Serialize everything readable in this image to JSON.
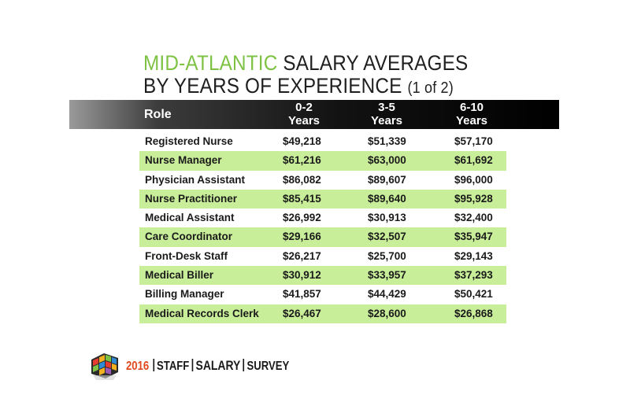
{
  "title": {
    "accent": "MID-ATLANTIC",
    "line1_rest": " SALARY AVERAGES",
    "line2": "BY YEARS OF EXPERIENCE",
    "line2_suffix": "(1 of 2)"
  },
  "footer": {
    "year": "2016",
    "word1": "STAFF",
    "word2": "SALARY",
    "word3": "SURVEY"
  },
  "colors": {
    "accent": "#7dc242",
    "row_shade": "#c9ee9a",
    "header_band": "#000000",
    "year": "#e0491e"
  },
  "chart_data": {
    "type": "table",
    "title": "MID-ATLANTIC SALARY AVERAGES BY YEARS OF EXPERIENCE (1 of 2)",
    "columns": [
      "Role",
      "0-2 Years",
      "3-5 Years",
      "6-10 Years"
    ],
    "header": {
      "role": "Role",
      "c1_line1": "0-2",
      "c1_line2": "Years",
      "c2_line1": "3-5",
      "c2_line2": "Years",
      "c3_line1": "6-10",
      "c3_line2": "Years"
    },
    "rows": [
      [
        "Registered Nurse",
        "$49,218",
        "$51,339",
        "$57,170"
      ],
      [
        "Nurse Manager",
        "$61,216",
        "$63,000",
        "$61,692"
      ],
      [
        "Physician Assistant",
        "$86,082",
        "$89,607",
        "$96,000"
      ],
      [
        "Nurse Practitioner",
        "$85,415",
        "$89,640",
        "$95,928"
      ],
      [
        "Medical Assistant",
        "$26,992",
        "$30,913",
        "$32,400"
      ],
      [
        "Care Coordinator",
        "$29,166",
        "$32,507",
        "$35,947"
      ],
      [
        "Front-Desk Staff",
        "$26,217",
        "$25,700",
        "$29,143"
      ],
      [
        "Medical Biller",
        "$30,912",
        "$33,957",
        "$37,293"
      ],
      [
        "Billing Manager",
        "$41,857",
        "$44,429",
        "$50,421"
      ],
      [
        "Medical Records Clerk",
        "$26,467",
        "$28,600",
        "$26,868"
      ]
    ]
  }
}
